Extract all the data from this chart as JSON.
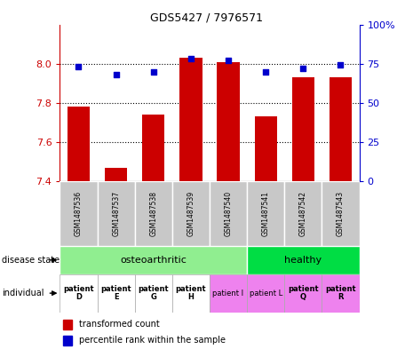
{
  "title": "GDS5427 / 7976571",
  "samples": [
    "GSM1487536",
    "GSM1487537",
    "GSM1487538",
    "GSM1487539",
    "GSM1487540",
    "GSM1487541",
    "GSM1487542",
    "GSM1487543"
  ],
  "red_values": [
    7.78,
    7.47,
    7.74,
    8.03,
    8.01,
    7.73,
    7.93,
    7.93
  ],
  "blue_values": [
    73,
    68,
    70,
    78,
    77,
    70,
    72,
    74
  ],
  "ylim_left": [
    7.4,
    8.2
  ],
  "ylim_right": [
    0,
    100
  ],
  "yticks_left": [
    7.4,
    7.6,
    7.8,
    8.0
  ],
  "yticks_right": [
    0,
    25,
    50,
    75,
    100
  ],
  "disease_state_colors": {
    "osteoarthritic": "#90EE90",
    "healthy": "#00DD44"
  },
  "individual_labels": [
    "patient\nD",
    "patient\nE",
    "patient\nG",
    "patient\nH",
    "patient I",
    "patient L",
    "patient\nQ",
    "patient\nR"
  ],
  "individual_colors": [
    "#ffffff",
    "#ffffff",
    "#ffffff",
    "#ffffff",
    "#EE82EE",
    "#EE82EE",
    "#EE82EE",
    "#EE82EE"
  ],
  "individual_has_bold": [
    true,
    true,
    true,
    true,
    false,
    false,
    true,
    true
  ],
  "bar_color": "#CC0000",
  "dot_color": "#0000CC",
  "bg_color": "#ffffff",
  "sample_bg_color": "#C8C8C8",
  "legend_red": "transformed count",
  "legend_blue": "percentile rank within the sample",
  "n_osteo": 5,
  "n_healthy": 3
}
